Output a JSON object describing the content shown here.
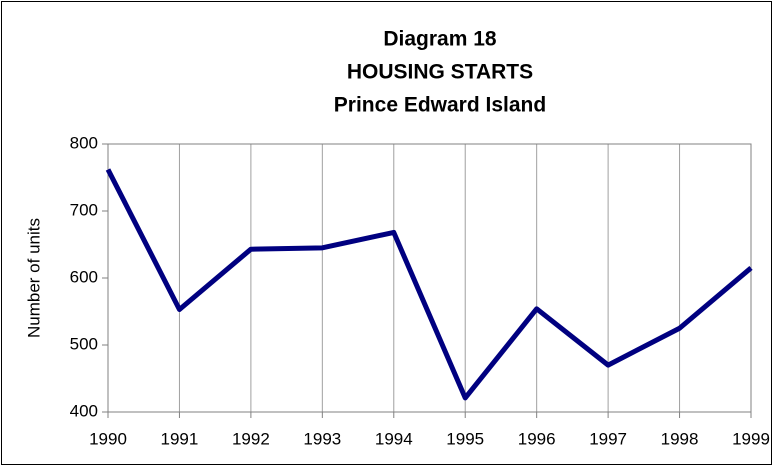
{
  "chart_data": {
    "type": "line",
    "title": [
      "Diagram 18",
      "HOUSING STARTS",
      "Prince Edward Island"
    ],
    "ylabel": "Number of units",
    "x": [
      1990,
      1991,
      1992,
      1993,
      1994,
      1995,
      1996,
      1997,
      1998,
      1999
    ],
    "series": [
      {
        "name": "Housing starts",
        "color": "#000080",
        "values": [
          762,
          553,
          643,
          645,
          668,
          421,
          554,
          470,
          525,
          615
        ]
      }
    ],
    "xlim": [
      1990,
      1999
    ],
    "xticks": [
      1990,
      1991,
      1992,
      1993,
      1994,
      1995,
      1996,
      1997,
      1998,
      1999
    ],
    "ylim": [
      400,
      800
    ],
    "yticks": [
      400,
      500,
      600,
      700,
      800
    ],
    "grid": "x",
    "legend": false
  }
}
